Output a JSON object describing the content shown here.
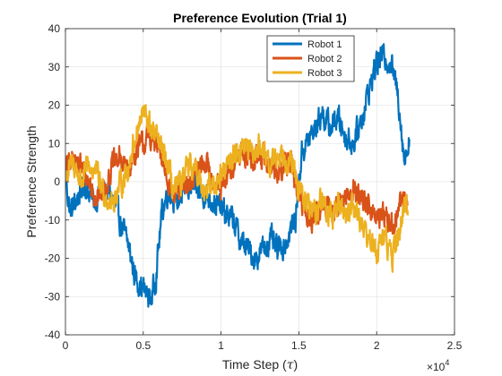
{
  "chart_data": {
    "type": "line",
    "title": "Preference Evolution (Trial 1)",
    "xlabel_main": "Time Step (",
    "xlabel_symbol": "τ",
    "xlabel_close": ")",
    "ylabel": "Preference Strength",
    "x_exponent_base": "×10",
    "x_exponent_power": "4",
    "xlim": [
      0,
      2.5
    ],
    "ylim": [
      -40,
      40
    ],
    "x_ticks": [
      0,
      0.5,
      1,
      1.5,
      2,
      2.5
    ],
    "x_tick_labels": [
      "0",
      "0.5",
      "1",
      "1.5",
      "2",
      "2.5"
    ],
    "y_ticks": [
      -40,
      -30,
      -20,
      -10,
      0,
      10,
      20,
      30,
      40
    ],
    "y_tick_labels": [
      "-40",
      "-30",
      "-20",
      "-10",
      "0",
      "10",
      "20",
      "30",
      "40"
    ],
    "grid": true,
    "legend_position": "top-right",
    "series": [
      {
        "name": "Robot 1",
        "color": "#0072bd",
        "keypoints": [
          [
            0,
            1
          ],
          [
            0.03,
            -8
          ],
          [
            0.08,
            -4
          ],
          [
            0.12,
            0
          ],
          [
            0.18,
            -5
          ],
          [
            0.25,
            -2
          ],
          [
            0.3,
            -4
          ],
          [
            0.35,
            -10
          ],
          [
            0.4,
            -16
          ],
          [
            0.45,
            -25
          ],
          [
            0.5,
            -28
          ],
          [
            0.55,
            -31
          ],
          [
            0.58,
            -25
          ],
          [
            0.62,
            -8
          ],
          [
            0.66,
            -2
          ],
          [
            0.72,
            -5
          ],
          [
            0.8,
            -1
          ],
          [
            0.88,
            -3
          ],
          [
            0.95,
            -5
          ],
          [
            1.02,
            -8
          ],
          [
            1.08,
            -10
          ],
          [
            1.12,
            -15
          ],
          [
            1.18,
            -18
          ],
          [
            1.22,
            -20
          ],
          [
            1.28,
            -17
          ],
          [
            1.32,
            -15
          ],
          [
            1.36,
            -18
          ],
          [
            1.42,
            -16
          ],
          [
            1.48,
            -9
          ],
          [
            1.52,
            8
          ],
          [
            1.58,
            12
          ],
          [
            1.65,
            18
          ],
          [
            1.7,
            14
          ],
          [
            1.75,
            17
          ],
          [
            1.8,
            12
          ],
          [
            1.85,
            10
          ],
          [
            1.9,
            16
          ],
          [
            1.95,
            24
          ],
          [
            2.0,
            31
          ],
          [
            2.05,
            33
          ],
          [
            2.1,
            30
          ],
          [
            2.14,
            22
          ],
          [
            2.18,
            5
          ],
          [
            2.21,
            12
          ]
        ]
      },
      {
        "name": "Robot 2",
        "color": "#d95319",
        "keypoints": [
          [
            0,
            3
          ],
          [
            0.05,
            6
          ],
          [
            0.1,
            4
          ],
          [
            0.15,
            0
          ],
          [
            0.2,
            -4
          ],
          [
            0.25,
            -2
          ],
          [
            0.3,
            4
          ],
          [
            0.35,
            6
          ],
          [
            0.4,
            3
          ],
          [
            0.45,
            8
          ],
          [
            0.5,
            10
          ],
          [
            0.55,
            12
          ],
          [
            0.6,
            8
          ],
          [
            0.65,
            2
          ],
          [
            0.7,
            -4
          ],
          [
            0.75,
            -2
          ],
          [
            0.8,
            0
          ],
          [
            0.85,
            3
          ],
          [
            0.9,
            5
          ],
          [
            0.95,
            1
          ],
          [
            1.0,
            -3
          ],
          [
            1.05,
            2
          ],
          [
            1.1,
            6
          ],
          [
            1.15,
            8
          ],
          [
            1.2,
            5
          ],
          [
            1.25,
            7
          ],
          [
            1.3,
            5
          ],
          [
            1.35,
            3
          ],
          [
            1.4,
            4
          ],
          [
            1.45,
            6
          ],
          [
            1.5,
            -5
          ],
          [
            1.55,
            -8
          ],
          [
            1.6,
            -10
          ],
          [
            1.65,
            -6
          ],
          [
            1.7,
            -8
          ],
          [
            1.75,
            -6
          ],
          [
            1.8,
            -4
          ],
          [
            1.85,
            -2
          ],
          [
            1.9,
            -4
          ],
          [
            1.95,
            -6
          ],
          [
            2.0,
            -10
          ],
          [
            2.05,
            -8
          ],
          [
            2.1,
            -12
          ],
          [
            2.15,
            -6
          ],
          [
            2.2,
            -4
          ]
        ]
      },
      {
        "name": "Robot 3",
        "color": "#edb120",
        "keypoints": [
          [
            0,
            1
          ],
          [
            0.05,
            5
          ],
          [
            0.1,
            0
          ],
          [
            0.15,
            4
          ],
          [
            0.2,
            2
          ],
          [
            0.25,
            -3
          ],
          [
            0.3,
            -6
          ],
          [
            0.35,
            -1
          ],
          [
            0.4,
            3
          ],
          [
            0.45,
            12
          ],
          [
            0.5,
            18
          ],
          [
            0.55,
            14
          ],
          [
            0.6,
            10
          ],
          [
            0.65,
            5
          ],
          [
            0.7,
            -3
          ],
          [
            0.75,
            0
          ],
          [
            0.8,
            4
          ],
          [
            0.85,
            2
          ],
          [
            0.9,
            -2
          ],
          [
            0.95,
            -1
          ],
          [
            1.0,
            2
          ],
          [
            1.05,
            5
          ],
          [
            1.1,
            8
          ],
          [
            1.15,
            10
          ],
          [
            1.2,
            6
          ],
          [
            1.25,
            10
          ],
          [
            1.3,
            4
          ],
          [
            1.35,
            6
          ],
          [
            1.4,
            8
          ],
          [
            1.45,
            5
          ],
          [
            1.5,
            -2
          ],
          [
            1.55,
            -6
          ],
          [
            1.6,
            -8
          ],
          [
            1.65,
            -4
          ],
          [
            1.7,
            -10
          ],
          [
            1.75,
            -6
          ],
          [
            1.8,
            -8
          ],
          [
            1.85,
            -6
          ],
          [
            1.9,
            -10
          ],
          [
            1.95,
            -15
          ],
          [
            2.0,
            -18
          ],
          [
            2.05,
            -14
          ],
          [
            2.1,
            -20
          ],
          [
            2.15,
            -12
          ],
          [
            2.2,
            -5
          ]
        ]
      }
    ]
  }
}
